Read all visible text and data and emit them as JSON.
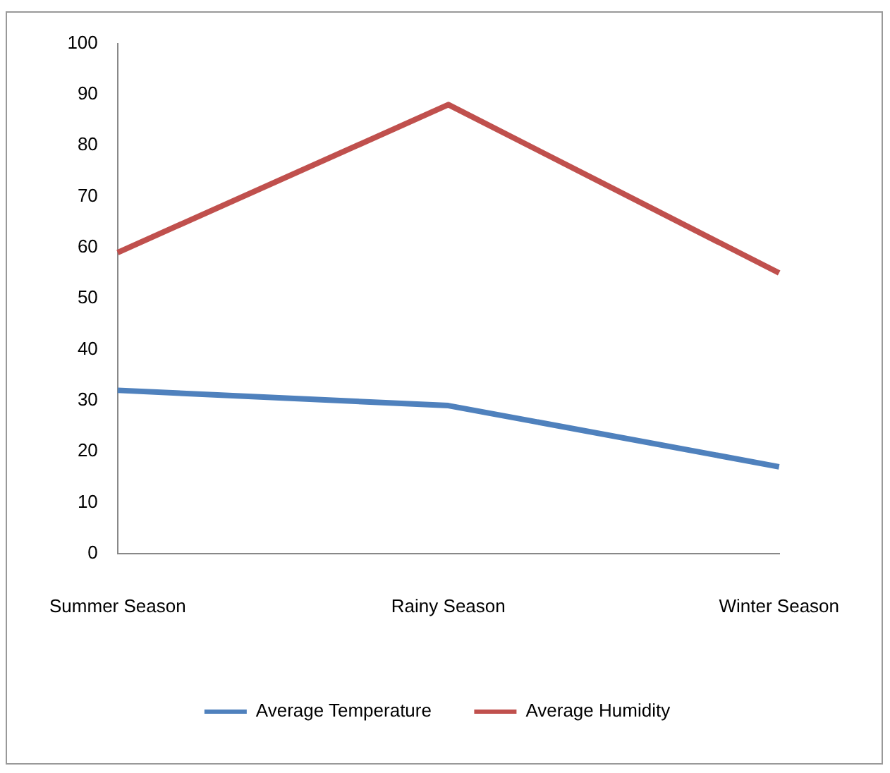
{
  "chart_data": {
    "type": "line",
    "categories": [
      "Summer Season",
      "Rainy Season",
      "Winter Season"
    ],
    "series": [
      {
        "name": "Average Temperature",
        "color": "#4f81bd",
        "values": [
          32,
          29,
          17
        ]
      },
      {
        "name": "Average Humidity",
        "color": "#c0504d",
        "values": [
          59,
          88,
          55
        ]
      }
    ],
    "ylim": [
      0,
      100
    ],
    "yticks": [
      0,
      10,
      20,
      30,
      40,
      50,
      60,
      70,
      80,
      90,
      100
    ],
    "grid": false,
    "legend": "bottom",
    "marker": "none"
  }
}
